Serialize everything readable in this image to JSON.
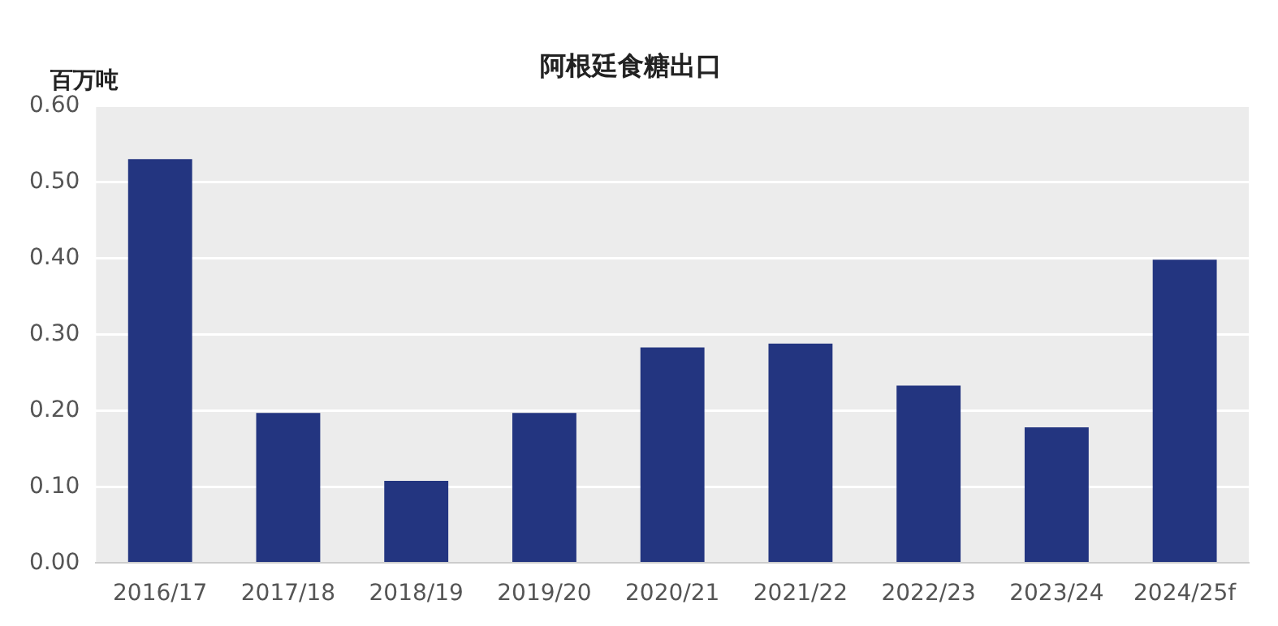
{
  "chart_data": {
    "type": "bar",
    "title": "阿根廷食糖出口",
    "ylabel": "百万吨",
    "categories": [
      "2016/17",
      "2017/18",
      "2018/19",
      "2019/20",
      "2020/21",
      "2021/22",
      "2022/23",
      "2023/24",
      "2024/25f"
    ],
    "values": [
      0.53,
      0.197,
      0.108,
      0.197,
      0.283,
      0.288,
      0.233,
      0.178,
      0.398
    ],
    "color": "#233580",
    "ylim": [
      0,
      0.6
    ],
    "yticks": [
      {
        "value": 0,
        "label": "0.00"
      },
      {
        "value": 0.1,
        "label": "0.10"
      },
      {
        "value": 0.2,
        "label": "0.20"
      },
      {
        "value": 0.3,
        "label": "0.30"
      },
      {
        "value": 0.4,
        "label": "0.40"
      },
      {
        "value": 0.5,
        "label": "0.50"
      },
      {
        "value": 0.6,
        "label": "0.60"
      }
    ],
    "grid": "y",
    "legend": false
  }
}
